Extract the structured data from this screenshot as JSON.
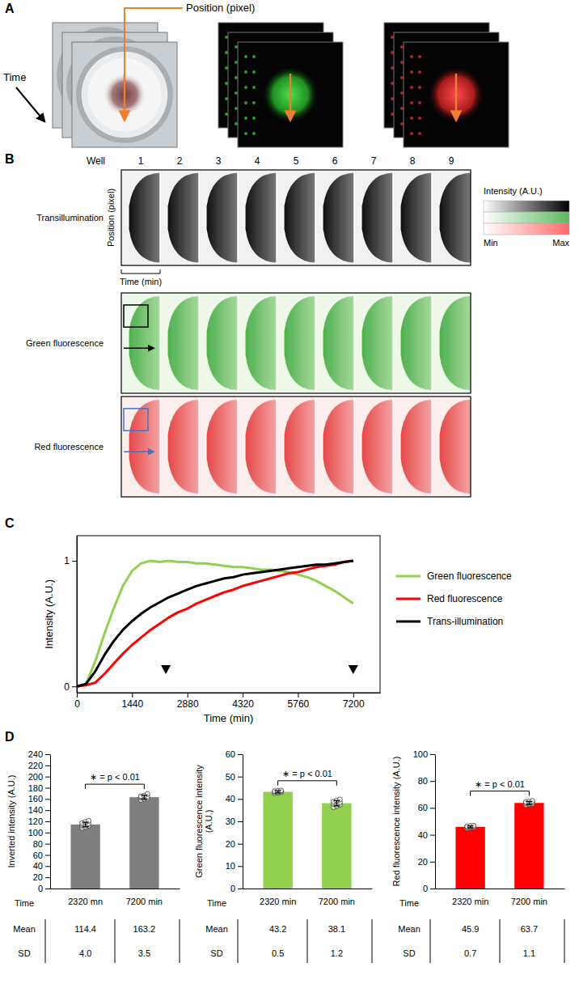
{
  "figure": {
    "panel_labels": [
      "A",
      "B",
      "C",
      "D"
    ],
    "panel_a": {
      "position_label": "Position (pixel)",
      "time_label": "Time"
    },
    "panel_b": {
      "well_label": "Well",
      "wells": [
        "1",
        "2",
        "3",
        "4",
        "5",
        "6",
        "7",
        "8",
        "9"
      ],
      "rows": [
        "Transillumination",
        "Green fluorescence",
        "Red fluorescence"
      ],
      "position_label": "Position (pixel)",
      "time_label": "Time (min)",
      "colorbar_title": "Intensity (A.U.)",
      "colorbar_min": "Min",
      "colorbar_max": "Max"
    }
  },
  "chart_data": [
    {
      "type": "line",
      "x_label": "Time (min)",
      "y_label": "Intensity (A.U.)",
      "x": [
        0,
        240,
        480,
        720,
        960,
        1200,
        1440,
        1680,
        1920,
        2160,
        2400,
        2640,
        2880,
        3120,
        3360,
        3600,
        3840,
        4080,
        4320,
        4560,
        4800,
        5040,
        5280,
        5520,
        5760,
        6000,
        6240,
        6480,
        6720,
        6960,
        7200
      ],
      "series": [
        {
          "name": "Green fluorescence",
          "color": "#92d050",
          "values": [
            0,
            0.02,
            0.2,
            0.42,
            0.62,
            0.8,
            0.92,
            0.98,
            1.0,
            0.99,
            1.0,
            0.99,
            0.99,
            0.98,
            0.98,
            0.97,
            0.96,
            0.95,
            0.95,
            0.94,
            0.93,
            0.93,
            0.92,
            0.91,
            0.89,
            0.87,
            0.84,
            0.8,
            0.76,
            0.71,
            0.66
          ]
        },
        {
          "name": "Red fluorescence",
          "color": "#ff0000",
          "values": [
            0,
            0.01,
            0.03,
            0.1,
            0.18,
            0.26,
            0.33,
            0.39,
            0.45,
            0.5,
            0.55,
            0.59,
            0.62,
            0.66,
            0.69,
            0.72,
            0.75,
            0.77,
            0.8,
            0.82,
            0.84,
            0.86,
            0.88,
            0.9,
            0.91,
            0.93,
            0.95,
            0.96,
            0.97,
            0.99,
            1.0
          ]
        },
        {
          "name": "Trans-illumination",
          "color": "#000000",
          "values": [
            0,
            0.02,
            0.12,
            0.25,
            0.36,
            0.45,
            0.52,
            0.58,
            0.63,
            0.67,
            0.71,
            0.74,
            0.77,
            0.8,
            0.82,
            0.84,
            0.86,
            0.87,
            0.89,
            0.9,
            0.91,
            0.92,
            0.93,
            0.94,
            0.95,
            0.96,
            0.97,
            0.97,
            0.98,
            0.99,
            1.0
          ]
        }
      ],
      "xlim": [
        0,
        7900
      ],
      "xticks": [
        0,
        1440,
        2880,
        4320,
        5760,
        7200
      ],
      "ylim": [
        -0.05,
        1.2
      ],
      "yticks": [
        0,
        1
      ],
      "legend": "right",
      "arrow_x": [
        2320,
        7200
      ]
    },
    {
      "type": "bar",
      "y_label": "Inverted intensity (A.U.)",
      "x_label": "Time",
      "categories": [
        "2320 mn",
        "7200 min"
      ],
      "values": [
        114.4,
        163.2
      ],
      "error": [
        4.0,
        3.5
      ],
      "error_labels": [
        "4.0",
        "3.5"
      ],
      "points": [
        [
          108,
          110,
          112,
          113,
          114,
          116,
          117,
          119,
          121
        ],
        [
          158,
          160,
          161,
          163,
          163,
          164,
          165,
          166,
          169
        ]
      ],
      "color": "#7f7f7f",
      "ylim": [
        0,
        240
      ],
      "yticks": [
        0,
        20,
        40,
        60,
        80,
        100,
        120,
        140,
        160,
        180,
        200,
        220,
        240
      ],
      "annotation": "∗ = p < 0.01",
      "table_rows": [
        "Mean",
        "SD"
      ]
    },
    {
      "type": "bar",
      "y_label": "Green fluorescence intensity (A.U.)",
      "x_label": "Time",
      "categories": [
        "2320 min",
        "7200 min"
      ],
      "values": [
        43.2,
        38.1
      ],
      "error": [
        0.5,
        1.2
      ],
      "error_labels": [
        "0.5",
        "1.2"
      ],
      "points": [
        [
          42.5,
          42.7,
          43.0,
          43.1,
          43.2,
          43.3,
          43.5,
          43.7,
          43.8
        ],
        [
          36.3,
          36.9,
          37.4,
          37.8,
          38.1,
          38.5,
          38.8,
          39.3,
          39.8
        ]
      ],
      "color": "#92d050",
      "ylim": [
        0,
        60
      ],
      "yticks": [
        0,
        10,
        20,
        30,
        40,
        50,
        60
      ],
      "annotation": "∗ = p < 0.01",
      "table_rows": [
        "Mean",
        "SD"
      ]
    },
    {
      "type": "bar",
      "y_label": "Red fluorescence intensity (A.U.)",
      "x_label": "Time",
      "categories": [
        "2320 min",
        "7200 min"
      ],
      "values": [
        45.9,
        63.7
      ],
      "error": [
        0.7,
        1.1
      ],
      "error_labels": [
        "0.7",
        "1.1"
      ],
      "points": [
        [
          44.9,
          45.2,
          45.5,
          45.8,
          45.9,
          46.1,
          46.3,
          46.6,
          46.8
        ],
        [
          62.1,
          62.6,
          63.0,
          63.4,
          63.7,
          64.0,
          64.4,
          64.8,
          65.3
        ]
      ],
      "color": "#ff0000",
      "ylim": [
        0,
        100
      ],
      "yticks": [
        0,
        20,
        40,
        60,
        80,
        100
      ],
      "annotation": "∗ = p < 0.01",
      "table_rows": [
        "Mean",
        "SD"
      ]
    }
  ]
}
